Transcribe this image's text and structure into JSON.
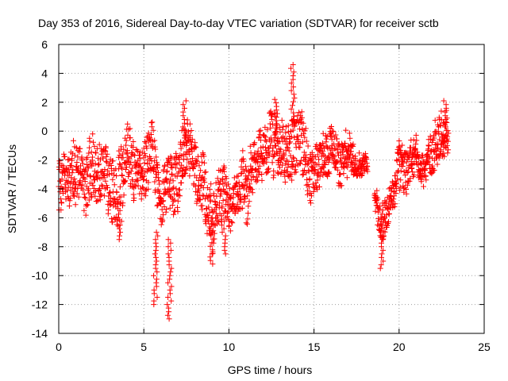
{
  "chart_data": {
    "type": "scatter",
    "title": "Day 353 of 2016, Sidereal Day-to-day VTEC variation (SDTVAR) for receiver sctb",
    "xlabel": "GPS time / hours",
    "ylabel": "SDTVAR / TECUs",
    "xlim": [
      0,
      25
    ],
    "ylim": [
      -14,
      6
    ],
    "xticks": [
      0,
      5,
      10,
      15,
      20,
      25
    ],
    "yticks": [
      -14,
      -12,
      -10,
      -8,
      -6,
      -4,
      -2,
      0,
      2,
      4,
      6
    ],
    "grid": true,
    "marker": "+",
    "series": [
      {
        "name": "SDTVAR",
        "color": "#ff0000",
        "envelope": [
          {
            "x": 0.0,
            "center": -3.5,
            "spread": 1.8
          },
          {
            "x": 0.5,
            "center": -4.0,
            "spread": 1.5
          },
          {
            "x": 1.0,
            "center": -2.5,
            "spread": 2.0
          },
          {
            "x": 1.5,
            "center": -3.5,
            "spread": 2.0
          },
          {
            "x": 2.0,
            "center": -2.0,
            "spread": 2.0
          },
          {
            "x": 2.5,
            "center": -3.0,
            "spread": 2.0
          },
          {
            "x": 3.0,
            "center": -3.5,
            "spread": 2.0
          },
          {
            "x": 3.5,
            "center": -4.0,
            "spread": 2.5
          },
          {
            "x": 4.0,
            "center": -2.0,
            "spread": 2.0
          },
          {
            "x": 4.5,
            "center": -3.0,
            "spread": 2.0
          },
          {
            "x": 5.0,
            "center": -2.0,
            "spread": 2.0
          },
          {
            "x": 5.5,
            "center": -1.0,
            "spread": 2.0
          },
          {
            "x": 6.0,
            "center": -5.0,
            "spread": 1.5
          },
          {
            "x": 6.5,
            "center": -4.0,
            "spread": 2.0
          },
          {
            "x": 7.0,
            "center": -3.0,
            "spread": 2.0
          },
          {
            "x": 7.5,
            "center": -1.0,
            "spread": 2.0
          },
          {
            "x": 8.0,
            "center": -2.5,
            "spread": 2.0
          },
          {
            "x": 8.5,
            "center": -3.5,
            "spread": 2.0
          },
          {
            "x": 9.0,
            "center": -5.5,
            "spread": 2.0
          },
          {
            "x": 9.5,
            "center": -3.5,
            "spread": 2.0
          },
          {
            "x": 10.0,
            "center": -5.0,
            "spread": 1.5
          },
          {
            "x": 10.5,
            "center": -4.5,
            "spread": 1.5
          },
          {
            "x": 11.0,
            "center": -4.0,
            "spread": 2.0
          },
          {
            "x": 11.5,
            "center": -2.0,
            "spread": 1.5
          },
          {
            "x": 12.0,
            "center": -1.5,
            "spread": 1.5
          },
          {
            "x": 12.5,
            "center": -0.5,
            "spread": 2.0
          },
          {
            "x": 13.0,
            "center": -1.5,
            "spread": 2.0
          },
          {
            "x": 13.5,
            "center": -1.5,
            "spread": 2.0
          },
          {
            "x": 14.0,
            "center": -1.0,
            "spread": 2.0
          },
          {
            "x": 14.5,
            "center": -2.0,
            "spread": 2.0
          },
          {
            "x": 15.0,
            "center": -3.0,
            "spread": 1.5
          },
          {
            "x": 15.5,
            "center": -1.5,
            "spread": 1.5
          },
          {
            "x": 16.0,
            "center": -1.0,
            "spread": 1.5
          },
          {
            "x": 16.5,
            "center": -1.5,
            "spread": 1.5
          },
          {
            "x": 17.0,
            "center": -1.5,
            "spread": 1.5
          },
          {
            "x": 17.5,
            "center": -2.5,
            "spread": 0.7
          },
          {
            "x": 18.0,
            "center": -2.5,
            "spread": 0.5
          },
          {
            "x": 18.6,
            "center": -5.5,
            "spread": 1.0
          },
          {
            "x": 19.0,
            "center": -6.5,
            "spread": 1.5
          },
          {
            "x": 19.5,
            "center": -5.0,
            "spread": 1.0
          },
          {
            "x": 20.0,
            "center": -2.5,
            "spread": 1.5
          },
          {
            "x": 20.5,
            "center": -3.0,
            "spread": 1.5
          },
          {
            "x": 21.0,
            "center": -2.0,
            "spread": 1.0
          },
          {
            "x": 21.5,
            "center": -2.5,
            "spread": 1.0
          },
          {
            "x": 22.0,
            "center": -1.0,
            "spread": 1.5
          },
          {
            "x": 22.5,
            "center": -0.5,
            "spread": 1.5
          },
          {
            "x": 22.9,
            "center": -0.5,
            "spread": 1.8
          }
        ],
        "spikes": [
          {
            "x": 13.75,
            "min": 0.5,
            "max": 4.6
          },
          {
            "x": 5.7,
            "min": -12.0,
            "max": -7.0
          },
          {
            "x": 6.5,
            "min": -13.0,
            "max": -7.5
          },
          {
            "x": 9.0,
            "min": -9.2,
            "max": -6.0
          },
          {
            "x": 9.7,
            "min": -8.5,
            "max": -6.0
          },
          {
            "x": 3.6,
            "min": -7.5,
            "max": -5.5
          },
          {
            "x": 19.0,
            "min": -9.5,
            "max": -7.0
          },
          {
            "x": 7.4,
            "min": -1.0,
            "max": 2.1
          },
          {
            "x": 12.8,
            "min": -1.0,
            "max": 2.2
          },
          {
            "x": 22.7,
            "min": -1.0,
            "max": 2.1
          }
        ]
      }
    ]
  }
}
